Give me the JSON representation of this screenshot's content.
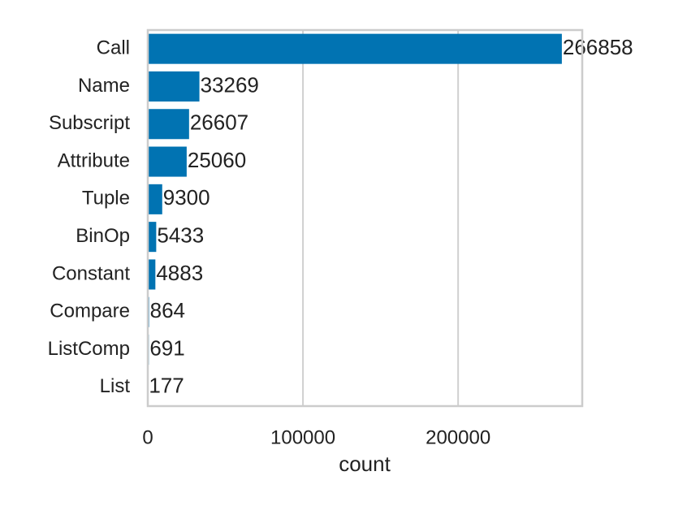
{
  "chart_data": {
    "type": "barh",
    "categories": [
      "Call",
      "Name",
      "Subscript",
      "Attribute",
      "Tuple",
      "BinOp",
      "Constant",
      "Compare",
      "ListComp",
      "List"
    ],
    "values": [
      266858,
      33269,
      26607,
      25060,
      9300,
      5433,
      4883,
      864,
      691,
      177
    ],
    "color": "#0173b2",
    "x_label": "count",
    "xlim": [
      0,
      280000
    ],
    "xticks": [
      0,
      100000,
      200000
    ],
    "grid": true
  }
}
